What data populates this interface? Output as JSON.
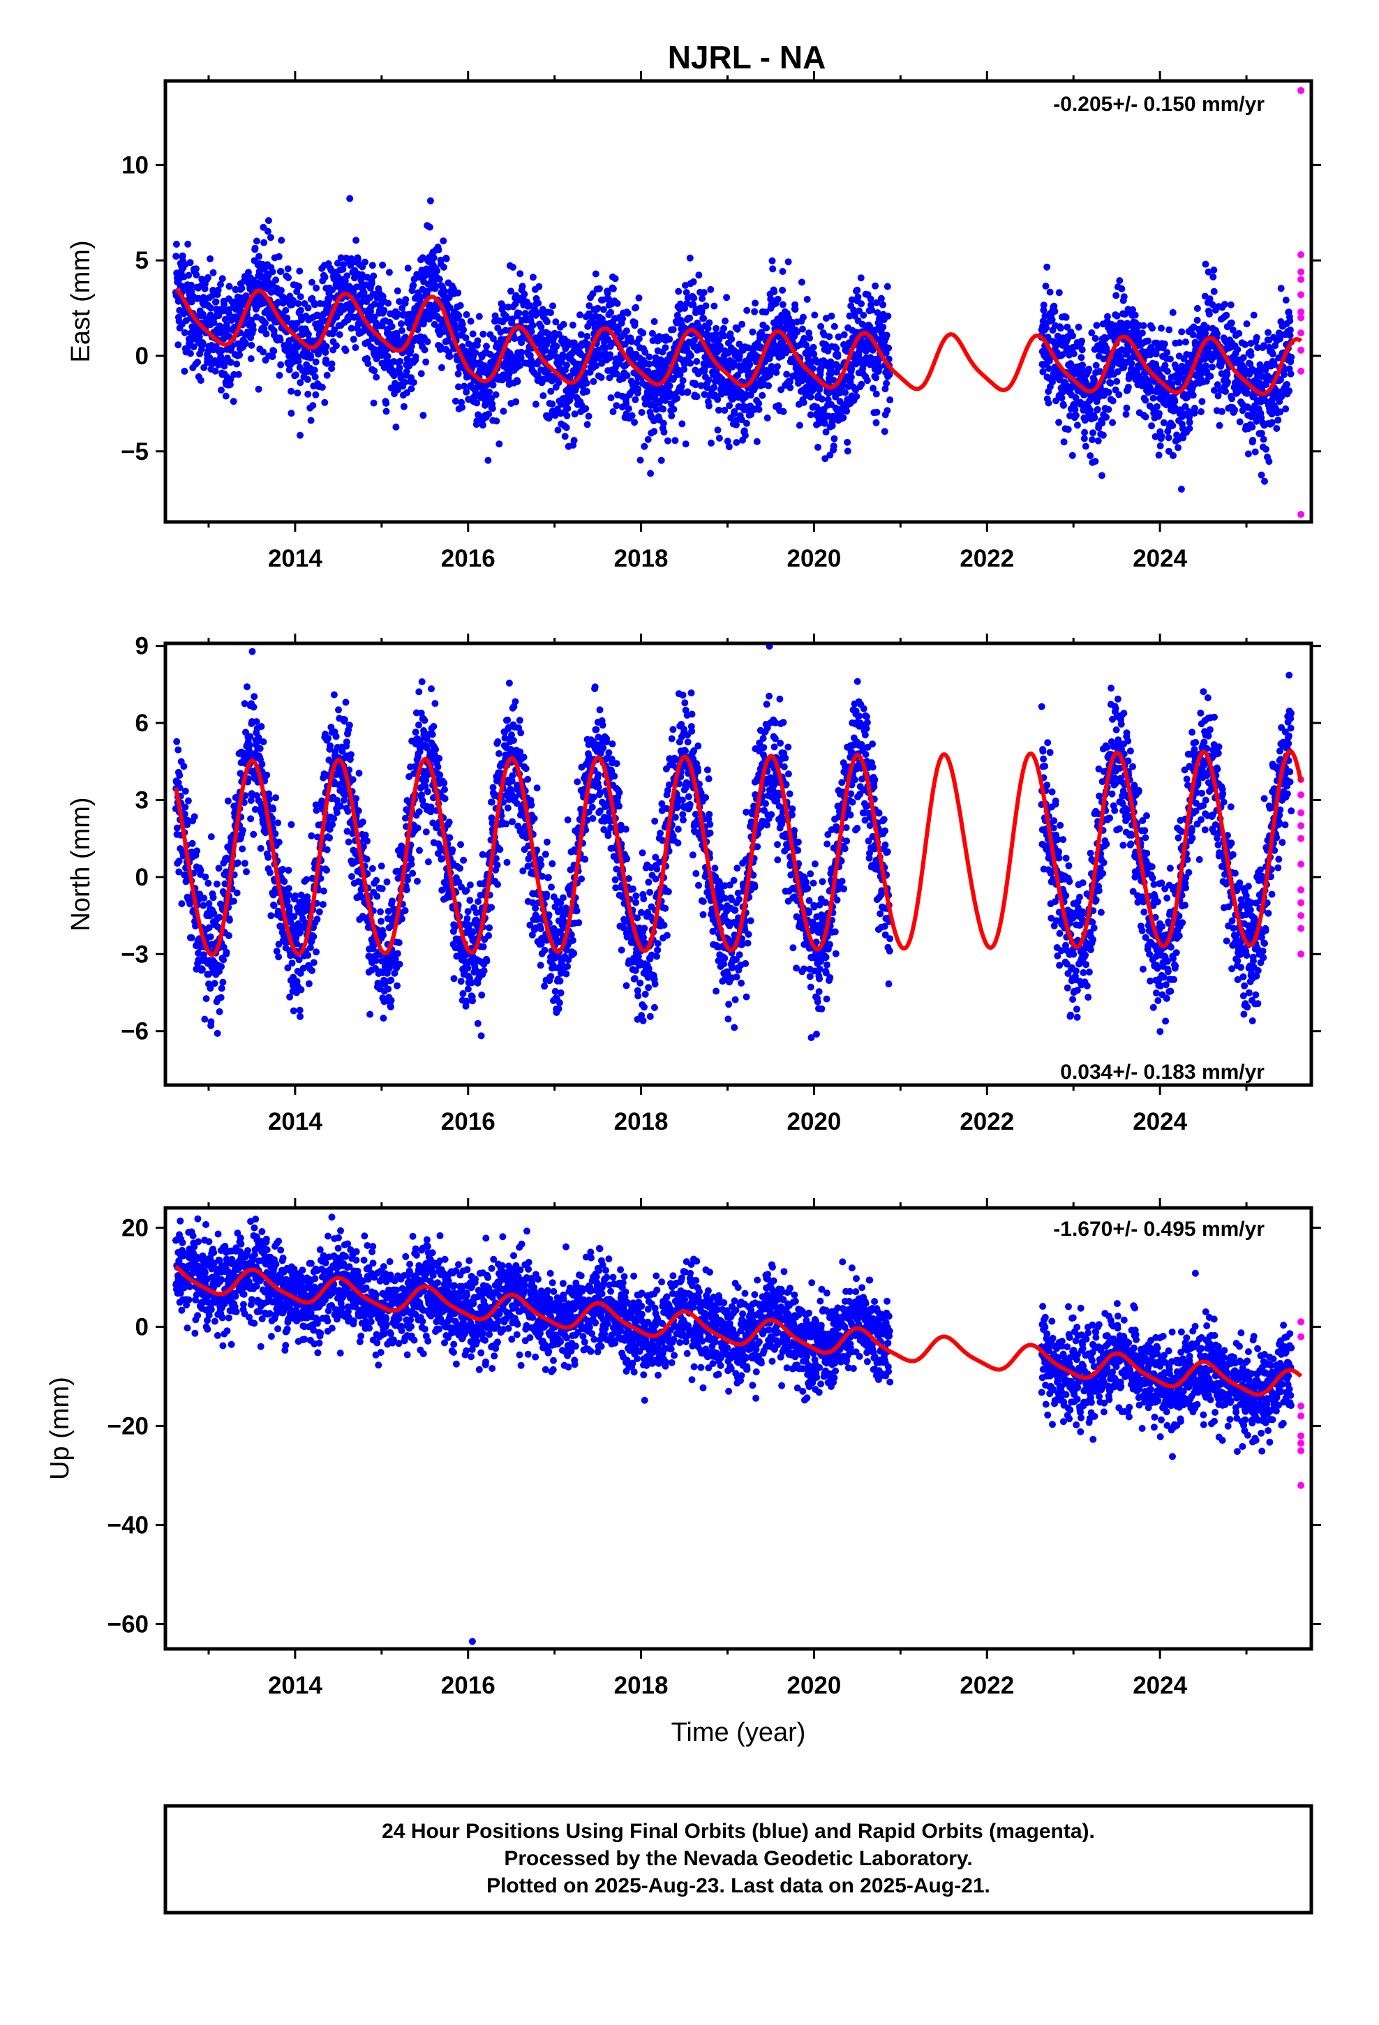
{
  "title": "NJRL - NA",
  "chart_data": [
    {
      "type": "scatter",
      "panel": "east",
      "ylabel": "East (mm)",
      "xlabel": "",
      "rate": "-0.205+/- 0.150 mm/yr",
      "xlim": [
        2012.5,
        2025.75
      ],
      "ylim": [
        -8.7,
        14.4
      ],
      "xticks": [
        2014,
        2016,
        2018,
        2020,
        2022,
        2024
      ],
      "yticks": [
        -5,
        0,
        5,
        10
      ],
      "ytick_labels": [
        "−5",
        "0",
        "5",
        "10"
      ],
      "series": [
        {
          "name": "Final Orbits (blue)",
          "color": "#0000ff",
          "segments": [
            [
              2012.62,
              2020.88
            ],
            [
              2022.63,
              2025.52
            ]
          ],
          "approx_trend": [
            [
              2012.62,
              2.8
            ],
            [
              2013.6,
              2.0
            ],
            [
              2015.6,
              2.4
            ],
            [
              2016.0,
              0.3
            ],
            [
              2018.0,
              -0.5
            ],
            [
              2020.88,
              -1.0
            ],
            [
              2022.63,
              -0.9
            ],
            [
              2025.52,
              -0.9
            ]
          ],
          "noise_sd": 1.5
        },
        {
          "name": "Rapid Orbits (magenta)",
          "color": "#ff00ff",
          "points": [
            [
              2025.63,
              13.9
            ],
            [
              2025.63,
              5.3
            ],
            [
              2025.63,
              4.4
            ],
            [
              2025.63,
              4.0
            ],
            [
              2025.63,
              3.2
            ],
            [
              2025.63,
              2.3
            ],
            [
              2025.63,
              2.0
            ],
            [
              2025.63,
              1.2
            ],
            [
              2025.63,
              0.3
            ],
            [
              2025.63,
              -0.8
            ],
            [
              2025.63,
              -8.3
            ]
          ]
        },
        {
          "name": "Model fit",
          "color": "#ff0000",
          "model": {
            "t0": 2012.62,
            "t1": 2025.63,
            "linear": [
              [
                2012.62,
                2.0
              ],
              [
                2015.7,
                1.5
              ],
              [
                2016.0,
                0.0
              ],
              [
                2020.9,
                -0.4
              ],
              [
                2025.63,
                -0.7
              ]
            ],
            "annual_amp": 1.35,
            "annual_peak": 0.62,
            "semi_amp": 0.3
          }
        }
      ]
    },
    {
      "type": "scatter",
      "panel": "north",
      "ylabel": "North (mm)",
      "xlabel": "",
      "rate": "0.034+/- 0.183 mm/yr",
      "xlim": [
        2012.5,
        2025.75
      ],
      "ylim": [
        -8.1,
        9.1
      ],
      "xticks": [
        2014,
        2016,
        2018,
        2020,
        2022,
        2024
      ],
      "yticks": [
        -6,
        -3,
        0,
        3,
        6,
        9
      ],
      "ytick_labels": [
        "−6",
        "−3",
        "0",
        "3",
        "6",
        "9"
      ],
      "series": [
        {
          "name": "Final Orbits (blue)",
          "color": "#0000ff",
          "segments": [
            [
              2012.62,
              2020.88
            ],
            [
              2022.63,
              2025.52
            ]
          ],
          "approx_trend": [
            [
              2012.62,
              0.5
            ],
            [
              2025.52,
              0.5
            ]
          ],
          "noise_sd": 1.3
        },
        {
          "name": "Rapid Orbits (magenta)",
          "color": "#ff00ff",
          "points": [
            [
              2025.63,
              3.8
            ],
            [
              2025.63,
              3.2
            ],
            [
              2025.63,
              2.5
            ],
            [
              2025.63,
              2.0
            ],
            [
              2025.63,
              1.5
            ],
            [
              2025.63,
              0.5
            ],
            [
              2025.63,
              -0.5
            ],
            [
              2025.63,
              -1.0
            ],
            [
              2025.63,
              -1.5
            ],
            [
              2025.63,
              -2.0
            ],
            [
              2025.63,
              -3.0
            ]
          ]
        },
        {
          "name": "Model fit",
          "color": "#ff0000",
          "model": {
            "t0": 2012.62,
            "t1": 2025.63,
            "linear": [
              [
                2012.62,
                0.6
              ],
              [
                2025.63,
                1.0
              ]
            ],
            "annual_amp": 3.75,
            "annual_peak": 0.52,
            "semi_amp": 0.25
          }
        }
      ]
    },
    {
      "type": "scatter",
      "panel": "up",
      "ylabel": "Up (mm)",
      "xlabel": "Time (year)",
      "rate": "-1.670+/- 0.495 mm/yr",
      "xlim": [
        2012.5,
        2025.75
      ],
      "ylim": [
        -65,
        24
      ],
      "xticks": [
        2014,
        2016,
        2018,
        2020,
        2022,
        2024
      ],
      "yticks": [
        -60,
        -40,
        -20,
        0,
        20
      ],
      "ytick_labels": [
        "−60",
        "−40",
        "−20",
        "0",
        "20"
      ],
      "series": [
        {
          "name": "Final Orbits (blue)",
          "color": "#0000ff",
          "segments": [
            [
              2012.62,
              2020.88
            ],
            [
              2022.63,
              2025.52
            ]
          ],
          "approx_trend": [
            [
              2012.62,
              11.0
            ],
            [
              2016.0,
              4.0
            ],
            [
              2020.88,
              -1.0
            ],
            [
              2022.63,
              -8.0
            ],
            [
              2025.52,
              -14.0
            ]
          ],
          "noise_sd": 4.5
        },
        {
          "name": "Rapid Orbits (magenta)",
          "color": "#ff00ff",
          "points": [
            [
              2025.63,
              1.0
            ],
            [
              2025.63,
              -2.0
            ],
            [
              2025.63,
              -16.0
            ],
            [
              2025.63,
              -18.0
            ],
            [
              2025.63,
              -22.0
            ],
            [
              2025.63,
              -23.5
            ],
            [
              2025.63,
              -25.0
            ],
            [
              2025.63,
              -32.0
            ]
          ]
        },
        {
          "name": "Outlier",
          "color": "#0000ff",
          "points": [
            [
              2016.05,
              -63.5
            ]
          ]
        },
        {
          "name": "Model fit",
          "color": "#ff0000",
          "model": {
            "t0": 2012.62,
            "t1": 2025.63,
            "linear": [
              [
                2012.62,
                10.0
              ],
              [
                2025.63,
                -12.0
              ]
            ],
            "annual_amp": 2.6,
            "annual_peak": 0.55,
            "semi_amp": 0.6
          }
        }
      ]
    }
  ],
  "footer": {
    "line1": "24 Hour Positions Using Final Orbits (blue) and Rapid Orbits (magenta).",
    "line2": "Processed by the Nevada Geodetic Laboratory.",
    "line3": "Plotted on 2025-Aug-23. Last data on 2025-Aug-21."
  }
}
